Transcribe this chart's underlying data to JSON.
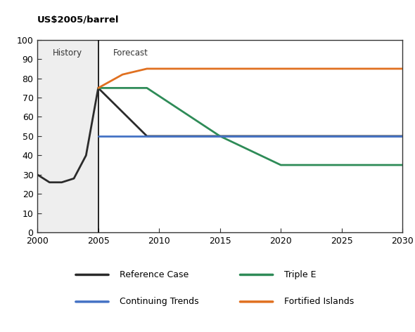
{
  "ylabel": "US$2005/barrel",
  "ylim": [
    0,
    100
  ],
  "xlim": [
    2000,
    2030
  ],
  "yticks": [
    0,
    10,
    20,
    30,
    40,
    50,
    60,
    70,
    80,
    90,
    100
  ],
  "xticks": [
    2000,
    2005,
    2010,
    2015,
    2020,
    2025,
    2030
  ],
  "divider_x": 2005,
  "history_label": "History",
  "forecast_label": "Forecast",
  "reference_case": {
    "x": [
      2000,
      2001,
      2002,
      2003,
      2004,
      2005,
      2009,
      2015,
      2030
    ],
    "y": [
      30,
      26,
      26,
      28,
      40,
      75,
      50,
      50,
      50
    ],
    "color": "#2b2b2b",
    "label": "Reference Case",
    "linewidth": 2.0
  },
  "triple_e": {
    "x": [
      2005,
      2009,
      2015,
      2020,
      2030
    ],
    "y": [
      75,
      75,
      50,
      35,
      35
    ],
    "color": "#2e8b57",
    "label": "Triple E",
    "linewidth": 2.0
  },
  "continuing_trends": {
    "x": [
      2005,
      2015,
      2030
    ],
    "y": [
      50,
      50,
      50
    ],
    "color": "#4472c4",
    "label": "Continuing Trends",
    "linewidth": 2.0
  },
  "fortified_islands": {
    "x": [
      2005,
      2007,
      2009,
      2030
    ],
    "y": [
      75,
      82,
      85,
      85
    ],
    "color": "#e07020",
    "label": "Fortified Islands",
    "linewidth": 2.0
  },
  "background_color": "#ffffff",
  "history_bg": "#eeeeee",
  "spine_color": "#333333"
}
